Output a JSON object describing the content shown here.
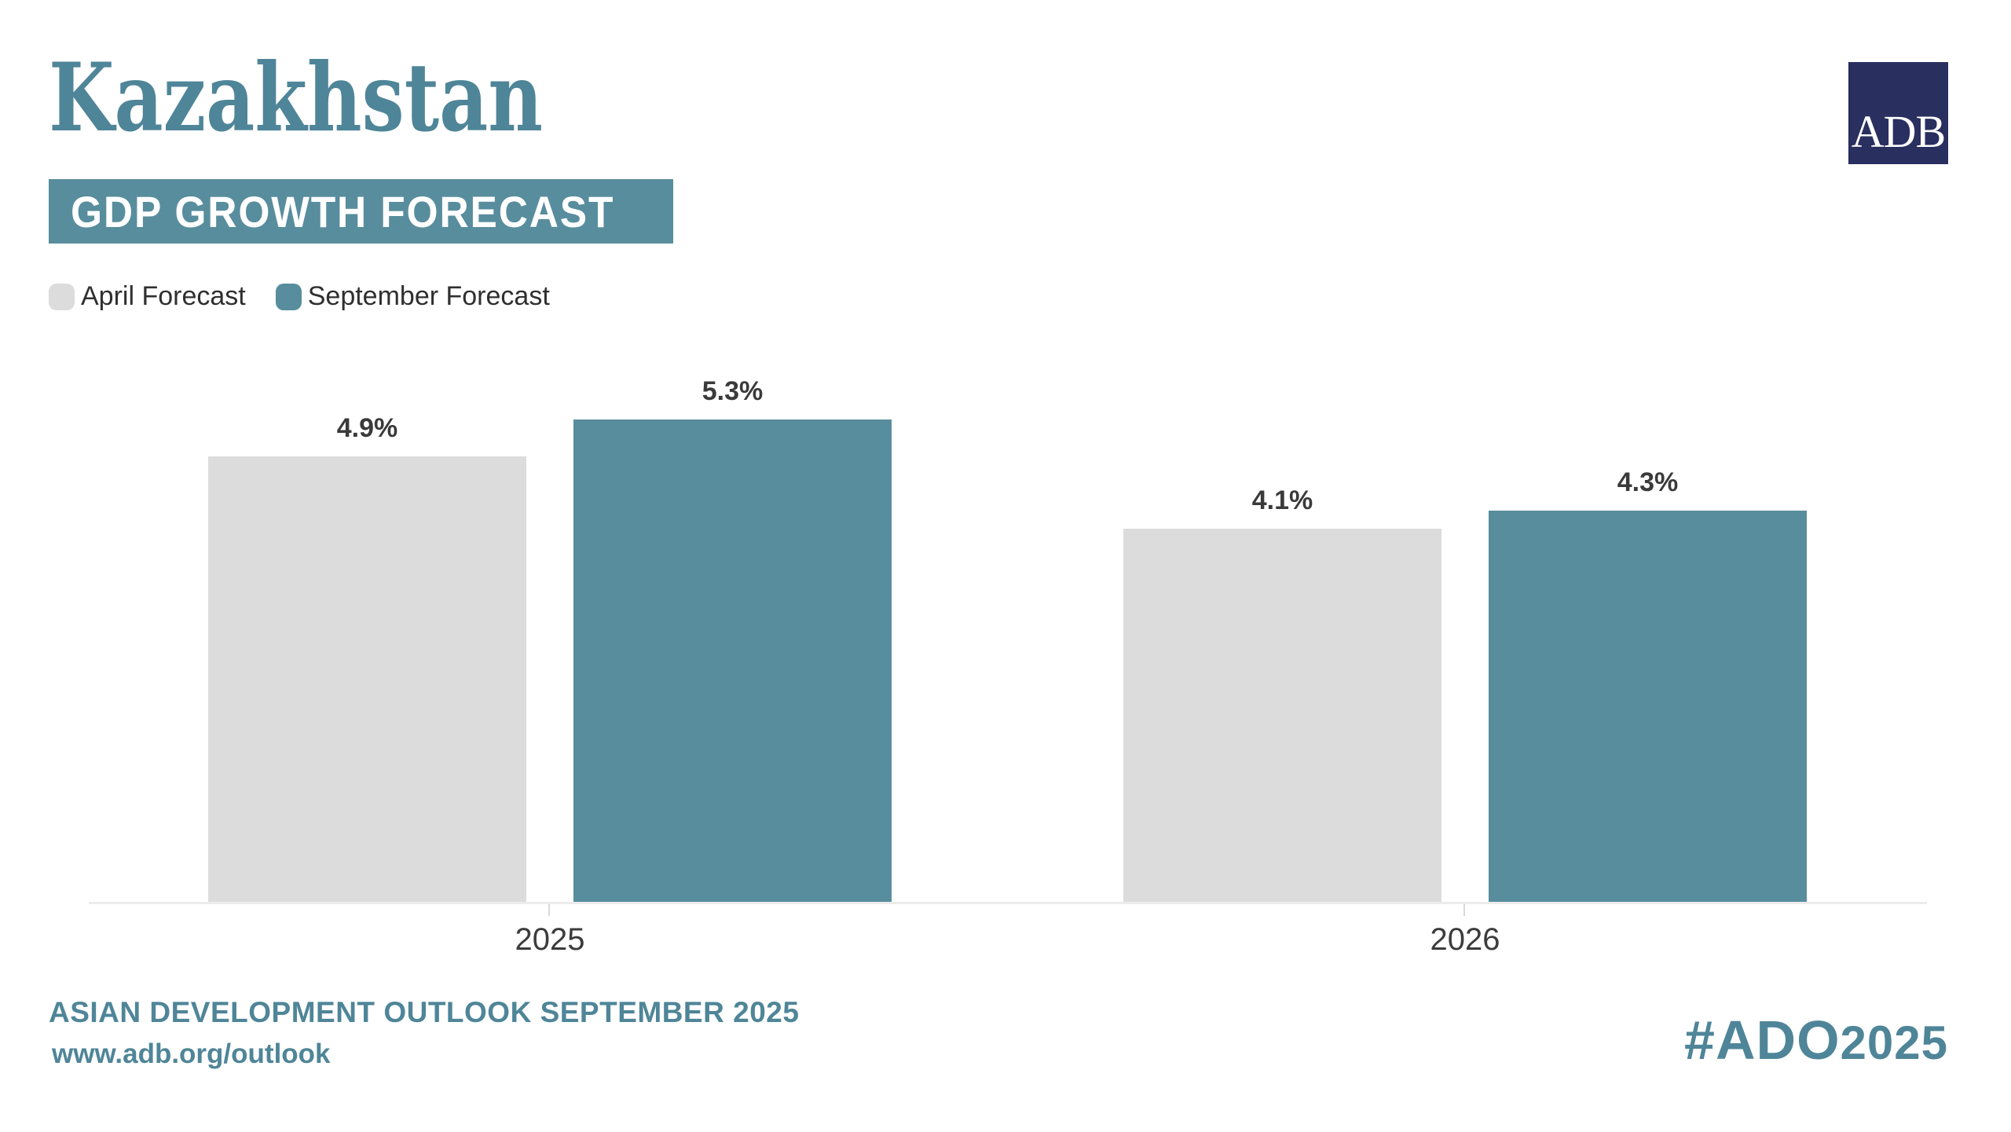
{
  "header": {
    "title": "Kazakhstan",
    "banner": "GDP GROWTH FORECAST",
    "logo_text": "ADB"
  },
  "legend": {
    "items": [
      {
        "label": "April Forecast",
        "color": "#dcdcdc"
      },
      {
        "label": "September Forecast",
        "color": "#588d9d"
      }
    ]
  },
  "chart_data": {
    "type": "bar",
    "title": "Kazakhstan GDP Growth Forecast",
    "categories": [
      "2025",
      "2026"
    ],
    "series": [
      {
        "name": "April Forecast",
        "color": "#dcdcdc",
        "values": [
          4.9,
          4.1
        ],
        "labels": [
          "4.9%",
          "4.1%"
        ]
      },
      {
        "name": "September Forecast",
        "color": "#588d9d",
        "values": [
          5.3,
          4.3
        ],
        "labels": [
          "5.3%",
          "4.3%"
        ]
      }
    ],
    "unit": "%",
    "ylim": [
      0,
      6
    ],
    "grid": false,
    "y_axis_shown": false,
    "value_labels": true,
    "legend_position": "top-left"
  },
  "footer": {
    "line1": "ASIAN DEVELOPMENT OUTLOOK SEPTEMBER 2025",
    "line2": "www.adb.org/outlook",
    "hashtag_prefix": "#ADO",
    "hashtag_year": "2025"
  },
  "colors": {
    "accent_teal": "#588d9d",
    "text_teal": "#4f8598",
    "bar_gray": "#dcdcdc",
    "logo_navy": "#292f5e",
    "value_label": "#3a3a3a",
    "axis_line": "#ececec",
    "background": "#ffffff"
  }
}
